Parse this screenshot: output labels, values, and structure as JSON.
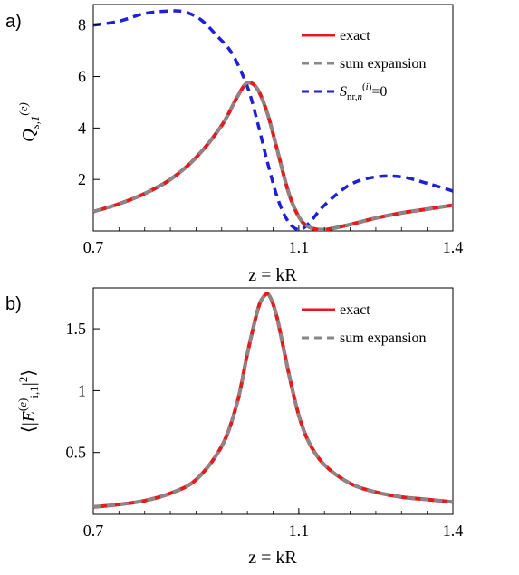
{
  "chart_data": [
    {
      "type": "line",
      "panel_label": "a)",
      "title": "",
      "xlabel": "z = kR",
      "ylabel": "Q_{s,1}^{(e)}",
      "xlim": [
        0.7,
        1.4
      ],
      "ylim": [
        0,
        8.8
      ],
      "x_ticks": [
        0.7,
        1.1,
        1.4
      ],
      "x_tick_labels": [
        "0.7",
        "1.1",
        "1.4"
      ],
      "y_ticks": [
        2,
        4,
        6,
        8
      ],
      "y_tick_labels": [
        "2",
        "4",
        "6",
        "8"
      ],
      "grid": false,
      "legend_position": "top-right",
      "series": [
        {
          "name": "exact",
          "color": "#e41a1c",
          "style": "solid",
          "x": [
            0.7,
            0.75,
            0.8,
            0.85,
            0.9,
            0.95,
            0.98,
            1.0,
            1.02,
            1.04,
            1.06,
            1.08,
            1.1,
            1.12,
            1.15,
            1.2,
            1.25,
            1.3,
            1.35,
            1.4
          ],
          "y": [
            0.75,
            1.05,
            1.45,
            2.0,
            2.85,
            4.1,
            5.2,
            5.75,
            5.5,
            4.5,
            3.0,
            1.5,
            0.55,
            0.15,
            0.05,
            0.25,
            0.5,
            0.7,
            0.85,
            1.0
          ]
        },
        {
          "name": "sum expansion",
          "color": "#888888",
          "style": "dashed",
          "x": [
            0.7,
            0.75,
            0.8,
            0.85,
            0.9,
            0.95,
            0.98,
            1.0,
            1.02,
            1.04,
            1.06,
            1.08,
            1.1,
            1.12,
            1.15,
            1.2,
            1.25,
            1.3,
            1.35,
            1.4
          ],
          "y": [
            0.75,
            1.05,
            1.45,
            2.0,
            2.85,
            4.1,
            5.2,
            5.75,
            5.5,
            4.5,
            3.0,
            1.5,
            0.55,
            0.15,
            0.05,
            0.25,
            0.5,
            0.7,
            0.85,
            1.0
          ]
        },
        {
          "name": "S_{nr,n}^{(i)}=0",
          "color": "#1f1fd6",
          "style": "dashed",
          "x": [
            0.7,
            0.75,
            0.8,
            0.85,
            0.88,
            0.91,
            0.94,
            0.97,
            1.0,
            1.02,
            1.04,
            1.06,
            1.08,
            1.1,
            1.12,
            1.15,
            1.2,
            1.25,
            1.3,
            1.35,
            1.4
          ],
          "y": [
            8.0,
            8.15,
            8.45,
            8.55,
            8.5,
            8.2,
            7.6,
            6.9,
            5.6,
            4.2,
            2.6,
            1.2,
            0.35,
            0.05,
            0.3,
            1.0,
            1.8,
            2.1,
            2.1,
            1.85,
            1.55
          ]
        }
      ]
    },
    {
      "type": "line",
      "panel_label": "b)",
      "title": "",
      "xlabel": "z = kR",
      "ylabel": "⟨|E^{(e)}_{i,1}|²⟩",
      "xlim": [
        0.7,
        1.4
      ],
      "ylim": [
        0,
        1.83
      ],
      "x_ticks": [
        0.7,
        1.1,
        1.4
      ],
      "x_tick_labels": [
        "0.7",
        "1.1",
        "1.4"
      ],
      "y_ticks": [
        0.5,
        1,
        1.5
      ],
      "y_tick_labels": [
        "0.5",
        "1",
        "1.5"
      ],
      "grid": false,
      "legend_position": "top-right",
      "series": [
        {
          "name": "exact",
          "color": "#e41a1c",
          "style": "solid",
          "x": [
            0.7,
            0.75,
            0.8,
            0.85,
            0.9,
            0.95,
            0.98,
            1.0,
            1.02,
            1.03,
            1.04,
            1.05,
            1.06,
            1.08,
            1.1,
            1.12,
            1.15,
            1.2,
            1.25,
            1.3,
            1.35,
            1.4
          ],
          "y": [
            0.06,
            0.08,
            0.11,
            0.17,
            0.28,
            0.55,
            0.9,
            1.3,
            1.65,
            1.75,
            1.78,
            1.7,
            1.55,
            1.15,
            0.8,
            0.58,
            0.4,
            0.25,
            0.18,
            0.14,
            0.12,
            0.1
          ]
        },
        {
          "name": "sum expansion",
          "color": "#888888",
          "style": "dashed",
          "x": [
            0.7,
            0.75,
            0.8,
            0.85,
            0.9,
            0.95,
            0.98,
            1.0,
            1.02,
            1.03,
            1.04,
            1.05,
            1.06,
            1.08,
            1.1,
            1.12,
            1.15,
            1.2,
            1.25,
            1.3,
            1.35,
            1.4
          ],
          "y": [
            0.06,
            0.08,
            0.11,
            0.17,
            0.28,
            0.55,
            0.9,
            1.3,
            1.65,
            1.75,
            1.78,
            1.7,
            1.55,
            1.15,
            0.8,
            0.58,
            0.4,
            0.25,
            0.18,
            0.14,
            0.12,
            0.1
          ]
        }
      ]
    }
  ]
}
